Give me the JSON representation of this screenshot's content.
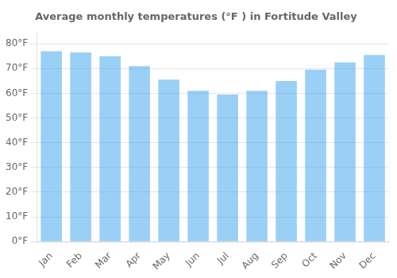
{
  "chart_data": {
    "type": "bar",
    "title": "Average monthly temperatures (°F ) in Fortitude Valley",
    "categories": [
      "Jan",
      "Feb",
      "Mar",
      "Apr",
      "May",
      "Jun",
      "Jul",
      "Aug",
      "Sep",
      "Oct",
      "Nov",
      "Dec"
    ],
    "values": [
      77,
      76.5,
      75,
      71,
      65.5,
      61,
      59.5,
      61,
      65,
      69.5,
      72.5,
      75.5
    ],
    "ylim": [
      0,
      85
    ],
    "yticks": [
      {
        "value": 0,
        "label": "0°F"
      },
      {
        "value": 10,
        "label": "10°F"
      },
      {
        "value": 20,
        "label": "20°F"
      },
      {
        "value": 30,
        "label": "30°F"
      },
      {
        "value": 40,
        "label": "40°F"
      },
      {
        "value": 50,
        "label": "50°F"
      },
      {
        "value": 60,
        "label": "60°F"
      },
      {
        "value": 70,
        "label": "70°F"
      },
      {
        "value": 80,
        "label": "80°F"
      }
    ],
    "grid": true
  }
}
